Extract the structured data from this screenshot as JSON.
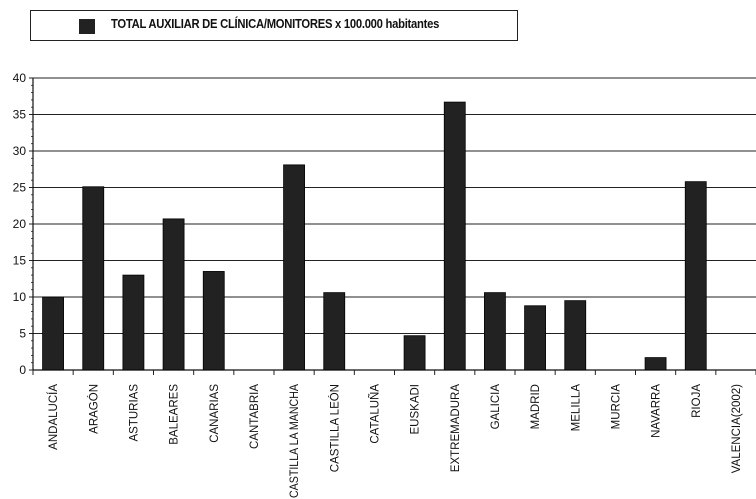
{
  "legend": {
    "label": "TOTAL AUXILIAR DE CLÍNICA/MONITORES x 100.000 habitantes",
    "color": "#222222"
  },
  "chart_data": {
    "type": "bar",
    "title": "",
    "xlabel": "",
    "ylabel": "",
    "ylim": [
      0,
      40
    ],
    "yticks": [
      "0",
      "5",
      "10",
      "15",
      "20",
      "25",
      "30",
      "35",
      "40"
    ],
    "grid": true,
    "legend_position": "top-left",
    "categories": [
      "ANDALUCÍA",
      "ARAGÓN",
      "ASTURIAS",
      "BALEARES",
      "CANARIAS",
      "CANTABRIA",
      "CASTILLA LA MANCHA",
      "CASTILLA LEÓN",
      "CATALUÑA",
      "EUSKADI",
      "EXTREMADURA",
      "GALICIA",
      "MADRID",
      "MELILLA",
      "MURCIA",
      "NAVARRA",
      "RIOJA",
      "VALENCIA(2002)"
    ],
    "series": [
      {
        "name": "TOTAL AUXILIAR DE CLÍNICA/MONITORES x 100.000 habitantes",
        "color": "#222222",
        "values": [
          10.0,
          25.1,
          13.0,
          20.7,
          13.5,
          0,
          28.1,
          10.6,
          0,
          4.7,
          36.7,
          10.6,
          8.8,
          9.5,
          0,
          1.7,
          25.8,
          0
        ]
      }
    ]
  }
}
